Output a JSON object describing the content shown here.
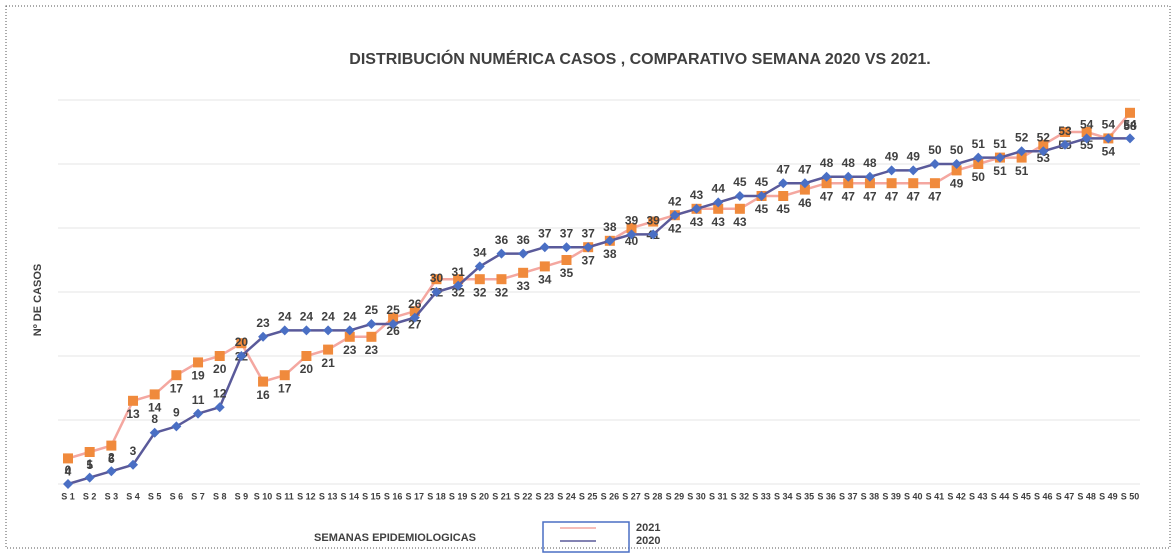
{
  "chart_data": {
    "type": "line",
    "title": "DISTRIBUCIÓN NUMÉRICA  CASOS , COMPARATIVO  SEMANA   2020 VS 2021.",
    "y_label": "Nº DE CASOS",
    "x_label": "SEMANAS EPIDEMIOLOGICAS",
    "categories": [
      "S 1",
      "S 2",
      "S 3",
      "S 4",
      "S 5",
      "S 6",
      "S 7",
      "S 8",
      "S 9",
      "S 10",
      "S 11",
      "S 12",
      "S 13",
      "S 14",
      "S 15",
      "S 16",
      "S 17",
      "S 18",
      "S 19",
      "S 20",
      "S 21",
      "S 22",
      "S 23",
      "S 24",
      "S 25",
      "S 26",
      "S 27",
      "S 28",
      "S 29",
      "S 30",
      "S 31",
      "S 32",
      "S 33",
      "S 34",
      "S 35",
      "S 36",
      "S 37",
      "S 38",
      "S 39",
      "S 40",
      "S 41",
      "S 42",
      "S 43",
      "S 44",
      "S 45",
      "S 46",
      "S 47",
      "S 48",
      "S 49",
      "S 50"
    ],
    "ylim": [
      0,
      60
    ],
    "series": [
      {
        "name": "2021",
        "color": "#f08a3c",
        "line_color": "#f4a7a0",
        "marker": "square",
        "values": [
          4,
          5,
          6,
          13,
          14,
          17,
          19,
          20,
          22,
          16,
          17,
          20,
          21,
          23,
          23,
          26,
          27,
          32,
          32,
          32,
          32,
          33,
          34,
          35,
          37,
          38,
          40,
          41,
          42,
          43,
          43,
          43,
          45,
          45,
          46,
          47,
          47,
          47,
          47,
          47,
          47,
          49,
          50,
          51,
          51,
          53,
          55,
          55,
          54,
          58
        ]
      },
      {
        "name": "2020",
        "color": "#4a6fc4",
        "line_color": "#5a5a9a",
        "marker": "diamond",
        "values": [
          0,
          1,
          2,
          3,
          8,
          9,
          11,
          12,
          20,
          23,
          24,
          24,
          24,
          24,
          25,
          25,
          26,
          30,
          31,
          34,
          36,
          36,
          37,
          37,
          37,
          38,
          39,
          39,
          42,
          43,
          44,
          45,
          45,
          47,
          47,
          48,
          48,
          48,
          49,
          49,
          50,
          50,
          51,
          51,
          52,
          52,
          53,
          54,
          54,
          54
        ]
      }
    ]
  }
}
